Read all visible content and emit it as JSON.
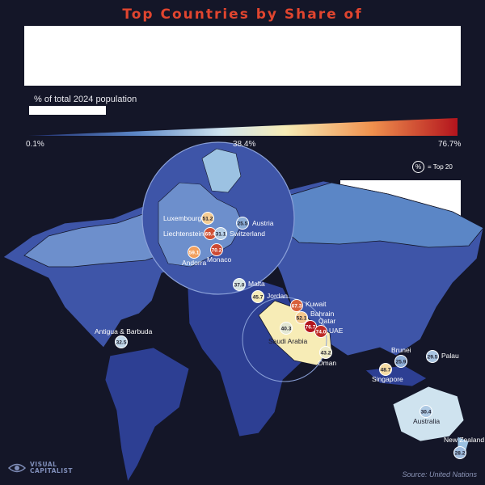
{
  "title": "Top Countries by Share of",
  "legend": {
    "caption": "% of total 2024 population",
    "min_label": "0.1%",
    "mid_label": "38.4%",
    "max_label": "76.7%",
    "colors": [
      "#1f2d6e",
      "#3b5fae",
      "#9cc2e2",
      "#f7ecb6",
      "#f2a45c",
      "#e0452f",
      "#b3141d"
    ]
  },
  "top20_key": {
    "symbol": "%",
    "text": "= Top 20"
  },
  "source": "Source: United Nations",
  "logo": {
    "line1": "VISUAL",
    "line2": "CAPITALIST"
  },
  "countries": [
    {
      "name": "Luxembourg",
      "value": "51.2"
    },
    {
      "name": "Austria",
      "value": "25.5"
    },
    {
      "name": "Liechtenstein",
      "value": "69.4"
    },
    {
      "name": "Switzerland",
      "value": "31.1"
    },
    {
      "name": "Andorra",
      "value": "59.1"
    },
    {
      "name": "Monaco",
      "value": "70.2"
    },
    {
      "name": "Malta",
      "value": "37.0"
    },
    {
      "name": "Jordan",
      "value": "45.7"
    },
    {
      "name": "Kuwait",
      "value": "67.3"
    },
    {
      "name": "Bahrain",
      "value": "52.1"
    },
    {
      "name": "Qatar",
      "value": "76.7"
    },
    {
      "name": "UAE",
      "value": "74.0"
    },
    {
      "name": "Saudi Arabia",
      "value": "40.3"
    },
    {
      "name": "Oman",
      "value": "43.2"
    },
    {
      "name": "Antigua & Barbuda",
      "value": "32.5"
    },
    {
      "name": "Brunei",
      "value": "25.9"
    },
    {
      "name": "Palau",
      "value": "29.5"
    },
    {
      "name": "Singapore",
      "value": "48.7"
    },
    {
      "name": "Australia",
      "value": "30.4"
    },
    {
      "name": "New Zealand",
      "value": "28.2"
    }
  ]
}
